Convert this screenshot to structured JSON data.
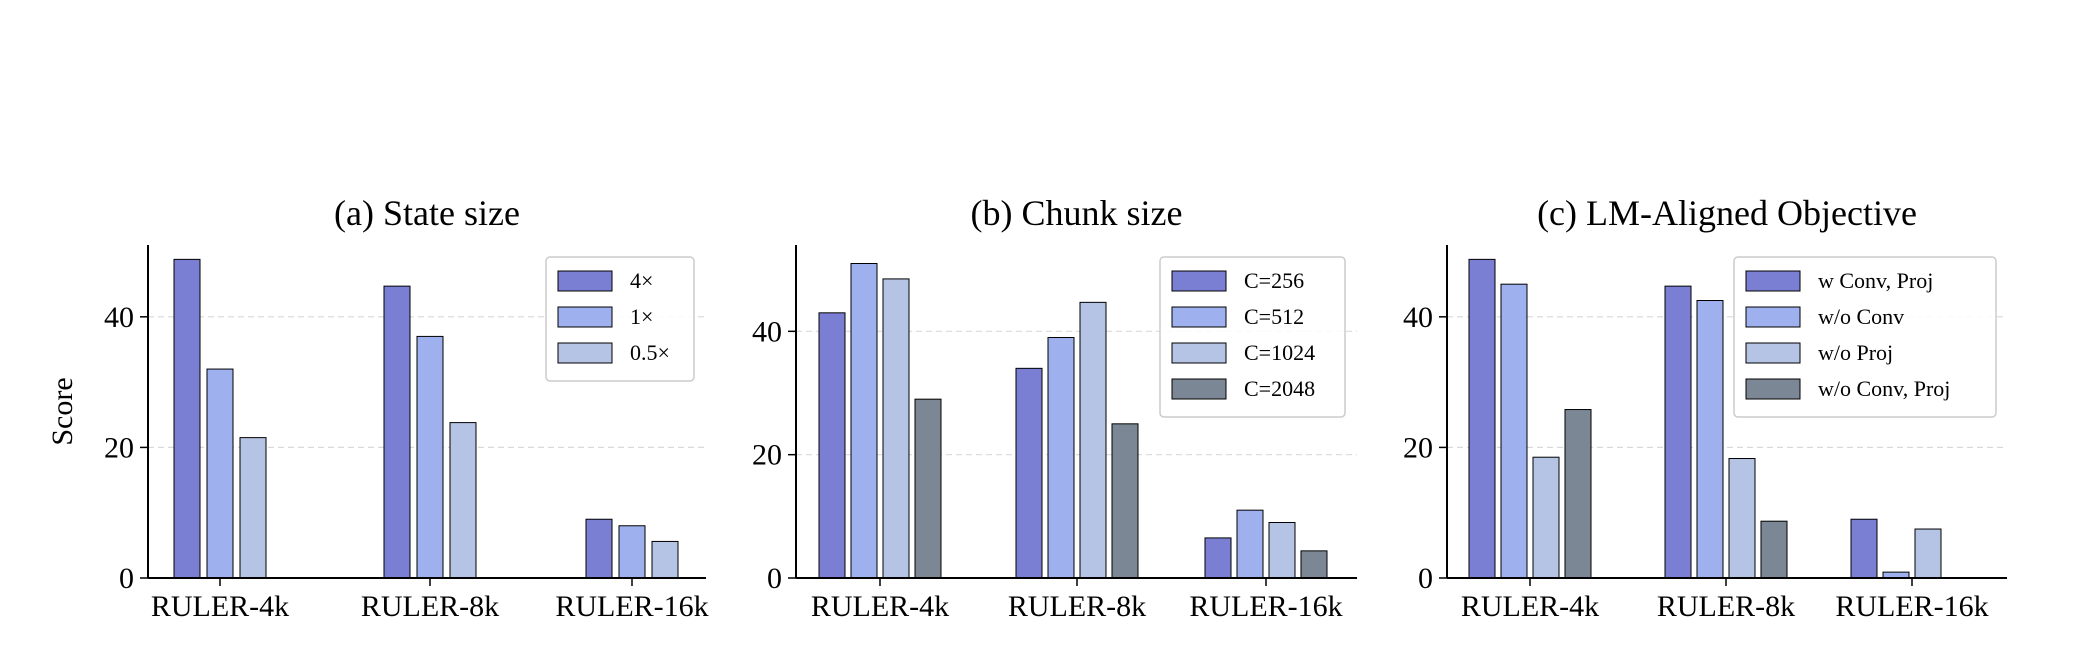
{
  "chart_data": [
    {
      "type": "bar",
      "title": "(a) State size",
      "ylabel": "Score",
      "categories": [
        "RULER-4k",
        "RULER-8k",
        "RULER-16k"
      ],
      "ylim": [
        0,
        51
      ],
      "yticks": [
        0,
        20,
        40
      ],
      "grid": true,
      "legend_position": "top-right",
      "series": [
        {
          "name": "4×",
          "color": "#7b7fd4",
          "values": [
            48.8,
            44.7,
            9.0
          ]
        },
        {
          "name": "1×",
          "color": "#9eb1ee",
          "values": [
            32.0,
            37.0,
            8.0
          ]
        },
        {
          "name": "0.5×",
          "color": "#b5c3e5",
          "values": [
            21.5,
            23.8,
            5.6
          ]
        }
      ]
    },
    {
      "type": "bar",
      "title": "(b) Chunk size",
      "ylabel": "",
      "categories": [
        "RULER-4k",
        "RULER-8k",
        "RULER-16k"
      ],
      "ylim": [
        0,
        54
      ],
      "yticks": [
        0,
        20,
        40
      ],
      "grid": true,
      "legend_position": "top-right",
      "series": [
        {
          "name": "C=256",
          "color": "#7b7fd4",
          "values": [
            43.0,
            34.0,
            6.5
          ]
        },
        {
          "name": "C=512",
          "color": "#9eb1ee",
          "values": [
            51.0,
            39.0,
            11.0
          ]
        },
        {
          "name": "C=1024",
          "color": "#b5c3e5",
          "values": [
            48.5,
            44.7,
            9.0
          ]
        },
        {
          "name": "C=2048",
          "color": "#7b8794",
          "values": [
            29.0,
            25.0,
            4.4
          ]
        }
      ]
    },
    {
      "type": "bar",
      "title": "(c) LM-Aligned Objective",
      "ylabel": "",
      "categories": [
        "RULER-4k",
        "RULER-8k",
        "RULER-16k"
      ],
      "ylim": [
        0,
        51
      ],
      "yticks": [
        0,
        20,
        40
      ],
      "grid": true,
      "legend_position": "top-right",
      "series": [
        {
          "name": "w Conv, Proj",
          "color": "#7b7fd4",
          "values": [
            48.8,
            44.7,
            9.0
          ]
        },
        {
          "name": "w/o Conv",
          "color": "#9eb1ee",
          "values": [
            45.0,
            42.5,
            0.9
          ]
        },
        {
          "name": "w/o Proj",
          "color": "#b5c3e5",
          "values": [
            18.5,
            18.3,
            7.5
          ]
        },
        {
          "name": "w/o Conv, Proj",
          "color": "#7b8794",
          "values": [
            25.8,
            8.7,
            0
          ]
        }
      ]
    }
  ]
}
